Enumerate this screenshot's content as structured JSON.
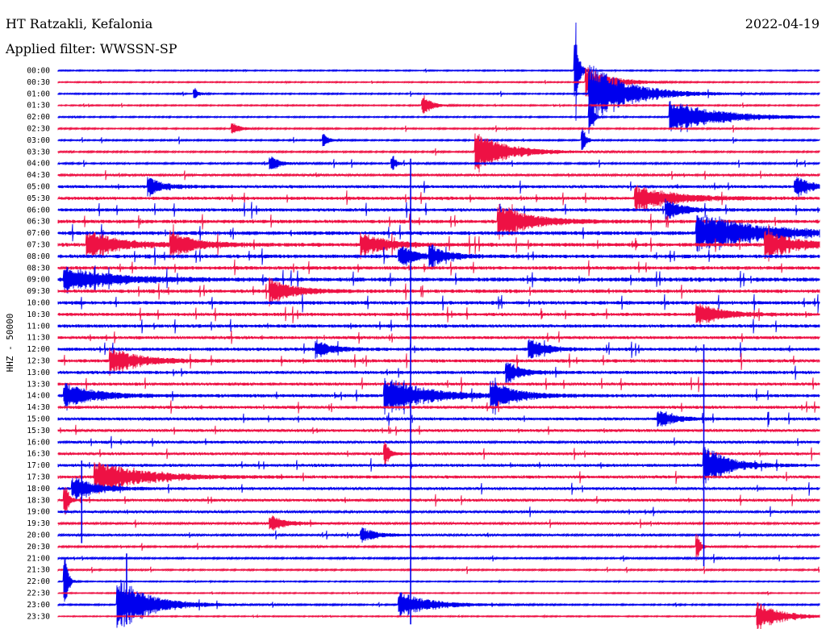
{
  "header": {
    "station": "HT Ratzakli, Kefalonia",
    "filter_label": "Applied filter: WWSSN-SP",
    "date": "2022-04-19"
  },
  "colors": {
    "trace_a": "#0000ee",
    "trace_b": "#ee1144",
    "text": "#000000"
  },
  "chart_data": {
    "type": "line",
    "title": "HT Ratzakli, Kefalonia",
    "subtitle": "Applied filter: WWSSN-SP",
    "ylabel": "HHZ - 50000",
    "xlabel": "",
    "y_tick_labels": [
      "00:00",
      "00:30",
      "01:00",
      "01:30",
      "02:00",
      "02:30",
      "03:00",
      "03:30",
      "04:00",
      "04:30",
      "05:00",
      "05:30",
      "06:00",
      "06:30",
      "07:00",
      "07:30",
      "08:00",
      "08:30",
      "09:00",
      "09:30",
      "10:00",
      "10:30",
      "11:00",
      "11:30",
      "12:00",
      "12:30",
      "13:00",
      "13:30",
      "14:00",
      "14:30",
      "15:00",
      "15:30",
      "16:00",
      "16:30",
      "17:00",
      "17:30",
      "18:00",
      "18:30",
      "19:00",
      "19:30",
      "20:00",
      "20:30",
      "21:00",
      "21:30",
      "22:00",
      "22:30",
      "23:00",
      "23:30"
    ],
    "series_colors_alternating": [
      "#0000ee",
      "#ee1144"
    ],
    "noise_level_by_row": [
      0.4,
      0.4,
      0.45,
      0.45,
      0.45,
      0.5,
      0.5,
      0.55,
      0.6,
      0.7,
      1.0,
      1.1,
      1.1,
      1.2,
      1.3,
      1.3,
      1.3,
      1.2,
      1.4,
      1.2,
      1.2,
      1.1,
      1.1,
      1.0,
      1.1,
      1.1,
      1.1,
      1.0,
      1.1,
      1.0,
      1.0,
      0.9,
      0.9,
      0.9,
      1.0,
      1.0,
      0.9,
      0.9,
      0.8,
      0.7,
      0.7,
      0.6,
      0.6,
      0.5,
      0.4,
      0.4,
      0.5,
      0.4
    ],
    "events": [
      {
        "row": 0,
        "t": 0.68,
        "amp": 60,
        "dur": 0.004
      },
      {
        "row": 1,
        "t": 0.695,
        "amp": 18,
        "dur": 0.03
      },
      {
        "row": 2,
        "t": 0.7,
        "amp": 34,
        "dur": 0.05
      },
      {
        "row": 2,
        "t": 0.18,
        "amp": 6,
        "dur": 0.006
      },
      {
        "row": 3,
        "t": 0.48,
        "amp": 12,
        "dur": 0.01
      },
      {
        "row": 4,
        "t": 0.805,
        "amp": 20,
        "dur": 0.06
      },
      {
        "row": 4,
        "t": 0.7,
        "amp": 16,
        "dur": 0.004
      },
      {
        "row": 5,
        "t": 0.23,
        "amp": 8,
        "dur": 0.008
      },
      {
        "row": 6,
        "t": 0.35,
        "amp": 7,
        "dur": 0.006
      },
      {
        "row": 6,
        "t": 0.69,
        "amp": 14,
        "dur": 0.004
      },
      {
        "row": 7,
        "t": 0.55,
        "amp": 22,
        "dur": 0.04
      },
      {
        "row": 8,
        "t": 0.28,
        "amp": 9,
        "dur": 0.01
      },
      {
        "row": 8,
        "t": 0.44,
        "amp": 10,
        "dur": 0.004
      },
      {
        "row": 10,
        "t": 0.12,
        "amp": 10,
        "dur": 0.02
      },
      {
        "row": 10,
        "t": 0.97,
        "amp": 11,
        "dur": 0.02
      },
      {
        "row": 11,
        "t": 0.76,
        "amp": 14,
        "dur": 0.05
      },
      {
        "row": 12,
        "t": 0.8,
        "amp": 12,
        "dur": 0.02
      },
      {
        "row": 13,
        "t": 0.58,
        "amp": 20,
        "dur": 0.04
      },
      {
        "row": 14,
        "t": 0.84,
        "amp": 22,
        "dur": 0.08
      },
      {
        "row": 15,
        "t": 0.04,
        "amp": 16,
        "dur": 0.04
      },
      {
        "row": 15,
        "t": 0.15,
        "amp": 14,
        "dur": 0.03
      },
      {
        "row": 15,
        "t": 0.4,
        "amp": 14,
        "dur": 0.03
      },
      {
        "row": 15,
        "t": 0.93,
        "amp": 16,
        "dur": 0.04
      },
      {
        "row": 16,
        "t": 0.45,
        "amp": 12,
        "dur": 0.02
      },
      {
        "row": 16,
        "t": 0.49,
        "amp": 12,
        "dur": 0.02
      },
      {
        "row": 18,
        "t": 0.01,
        "amp": 14,
        "dur": 0.06
      },
      {
        "row": 19,
        "t": 0.28,
        "amp": 14,
        "dur": 0.03
      },
      {
        "row": 21,
        "t": 0.84,
        "amp": 14,
        "dur": 0.03
      },
      {
        "row": 24,
        "t": 0.34,
        "amp": 10,
        "dur": 0.02
      },
      {
        "row": 24,
        "t": 0.62,
        "amp": 12,
        "dur": 0.02
      },
      {
        "row": 25,
        "t": 0.07,
        "amp": 14,
        "dur": 0.04
      },
      {
        "row": 26,
        "t": 0.59,
        "amp": 12,
        "dur": 0.02
      },
      {
        "row": 28,
        "t": 0.01,
        "amp": 14,
        "dur": 0.04
      },
      {
        "row": 28,
        "t": 0.43,
        "amp": 22,
        "dur": 0.05
      },
      {
        "row": 28,
        "t": 0.57,
        "amp": 16,
        "dur": 0.03
      },
      {
        "row": 30,
        "t": 0.79,
        "amp": 10,
        "dur": 0.02
      },
      {
        "row": 33,
        "t": 0.43,
        "amp": 16,
        "dur": 0.005
      },
      {
        "row": 34,
        "t": 0.85,
        "amp": 22,
        "dur": 0.03
      },
      {
        "row": 35,
        "t": 0.05,
        "amp": 18,
        "dur": 0.06
      },
      {
        "row": 36,
        "t": 0.02,
        "amp": 14,
        "dur": 0.03
      },
      {
        "row": 37,
        "t": 0.01,
        "amp": 22,
        "dur": 0.004
      },
      {
        "row": 39,
        "t": 0.28,
        "amp": 10,
        "dur": 0.02
      },
      {
        "row": 40,
        "t": 0.4,
        "amp": 8,
        "dur": 0.02
      },
      {
        "row": 41,
        "t": 0.84,
        "amp": 14,
        "dur": 0.004
      },
      {
        "row": 44,
        "t": 0.01,
        "amp": 26,
        "dur": 0.004
      },
      {
        "row": 46,
        "t": 0.08,
        "amp": 30,
        "dur": 0.04
      },
      {
        "row": 46,
        "t": 0.45,
        "amp": 14,
        "dur": 0.04
      },
      {
        "row": 47,
        "t": 0.92,
        "amp": 16,
        "dur": 0.03
      }
    ],
    "vertical_spikes": [
      {
        "t": 0.463,
        "from_row": 8,
        "to_row": 47
      },
      {
        "t": 0.848,
        "from_row": 24,
        "to_row": 42
      },
      {
        "t": 0.031,
        "from_row": 34,
        "to_row": 40
      },
      {
        "t": 0.09,
        "from_row": 42,
        "to_row": 47
      }
    ]
  }
}
